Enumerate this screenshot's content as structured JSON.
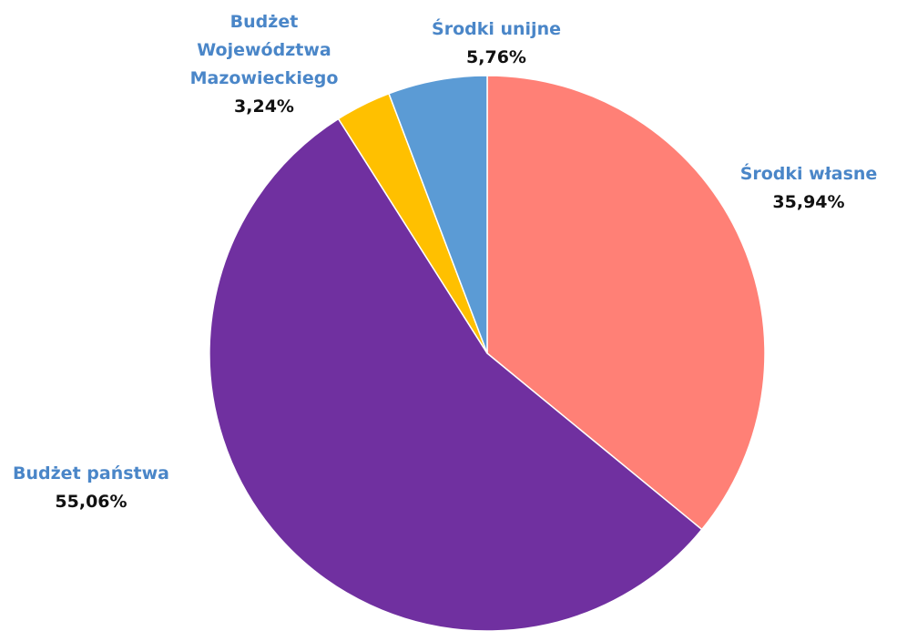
{
  "chart_data": {
    "type": "pie",
    "title": "",
    "start_angle_deg": 0,
    "direction": "clockwise",
    "label_color": "#4a86c8",
    "value_color": "#111111",
    "slices": [
      {
        "label": "Środki własne",
        "label_lines": [
          "Środki własne"
        ],
        "value": 35.94,
        "display": "35,94%",
        "color": "#ff8076"
      },
      {
        "label": "Budżet państwa",
        "label_lines": [
          "Budżet państwa"
        ],
        "value": 55.06,
        "display": "55,06%",
        "color": "#7030a0"
      },
      {
        "label": "Budżet Województwa Mazowieckiego",
        "label_lines": [
          "Budżet",
          "Województwa",
          "Mazowieckiego"
        ],
        "value": 3.24,
        "display": "3,24%",
        "color": "#ffc000"
      },
      {
        "label": "Środki unijne",
        "label_lines": [
          "Środki unijne"
        ],
        "value": 5.76,
        "display": "5,76%",
        "color": "#5b9bd5"
      }
    ]
  }
}
